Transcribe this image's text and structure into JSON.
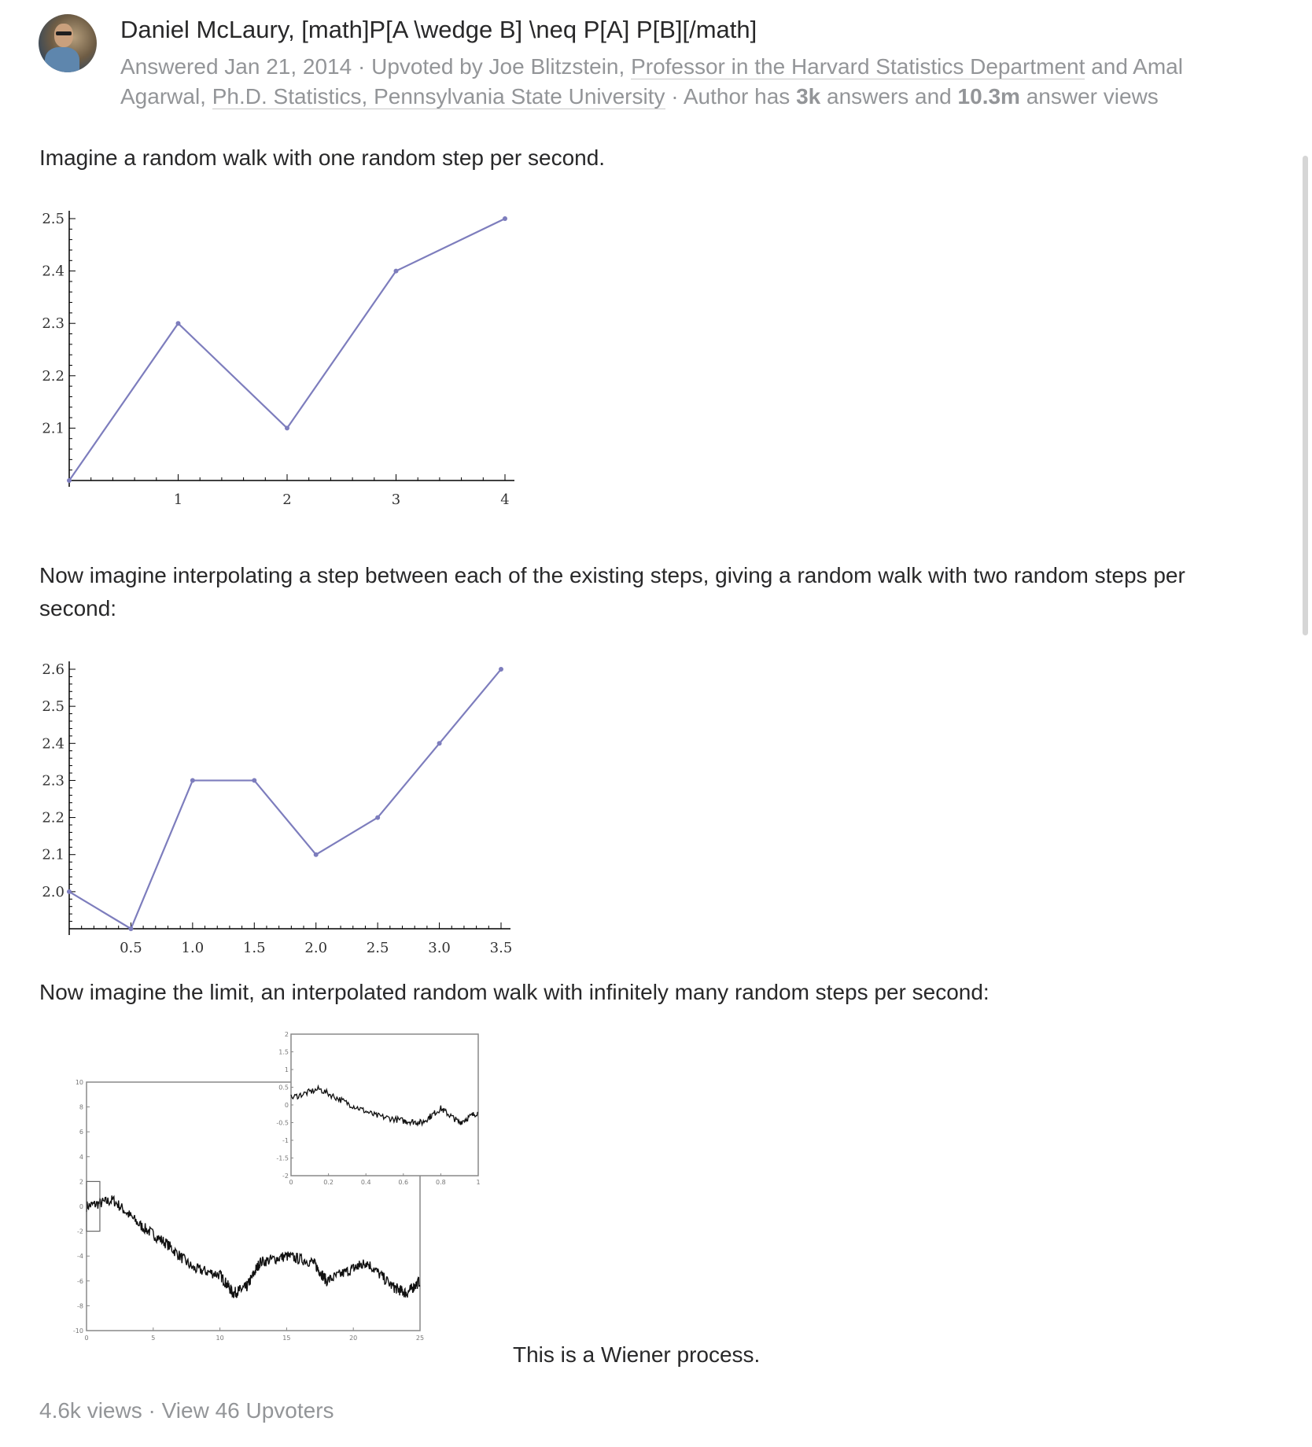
{
  "author": {
    "name": "Daniel McLaury, [math]P[A \\wedge B] \\neq P[A] P[B][/math]",
    "answered": "Answered Jan 21, 2014",
    "upvoted_prefix": "Upvoted by",
    "upvoter1_name": "Joe Blitzstein,",
    "upvoter1_credential": "Professor in the Harvard Statistics Department",
    "and_text": "and",
    "upvoter2_name": "Amal Agarwal,",
    "upvoter2_credential": "Ph.D. Statistics, Pennsylvania State University",
    "author_has": "Author has",
    "answers_count": "3k",
    "answers_word": "answers and",
    "views_count": "10.3m",
    "views_word": "answer views"
  },
  "body": {
    "p1": "Imagine a random walk with one random step per second.",
    "p2": "Now imagine interpolating a step between each of the existing steps, giving a random walk with two random steps per second:",
    "p3": "Now imagine the limit, an interpolated random walk with infinitely many random steps per second:",
    "caption": "This is a Wiener process."
  },
  "footer": {
    "views": "4.6k views",
    "separator": "·",
    "upvoters": "View 46 Upvoters"
  },
  "colors": {
    "line": "#7d7dbd",
    "meta": "#939598",
    "text": "#282829"
  },
  "chart_data": [
    {
      "type": "line",
      "x": [
        0,
        1,
        2,
        3,
        4
      ],
      "y": [
        2.0,
        2.3,
        2.1,
        2.4,
        2.5
      ],
      "x_ticks": [
        "1",
        "2",
        "3",
        "4"
      ],
      "y_ticks": [
        "2.1",
        "2.2",
        "2.3",
        "2.4",
        "2.5"
      ],
      "xlim": [
        0,
        4
      ],
      "ylim": [
        2.0,
        2.5
      ]
    },
    {
      "type": "line",
      "x": [
        0,
        0.5,
        1.0,
        1.5,
        2.0,
        2.5,
        3.0,
        3.5
      ],
      "y": [
        2.0,
        1.9,
        2.3,
        2.3,
        2.1,
        2.2,
        2.4,
        2.6
      ],
      "x_ticks": [
        "0.5",
        "1.0",
        "1.5",
        "2.0",
        "2.5",
        "3.0",
        "3.5"
      ],
      "y_ticks": [
        "2.0",
        "2.1",
        "2.2",
        "2.3",
        "2.4",
        "2.5",
        "2.6"
      ],
      "xlim": [
        0,
        3.5
      ],
      "ylim": [
        1.9,
        2.6
      ]
    },
    {
      "type": "line",
      "main_x_ticks": [
        "0",
        "5",
        "10",
        "15",
        "20",
        "25"
      ],
      "main_y_ticks": [
        "10",
        "8",
        "6",
        "4",
        "2",
        "0",
        "-2",
        "-4",
        "-6",
        "-8",
        "-10"
      ],
      "inset_x_ticks": [
        "0",
        "0.2",
        "0.4",
        "0.6",
        "0.8",
        "1"
      ],
      "inset_y_ticks": [
        "2",
        "1.5",
        "1",
        "0.5",
        "0",
        "-0.5",
        "-1",
        "-1.5",
        "-2"
      ],
      "xlim": [
        0,
        25
      ],
      "ylim": [
        -10,
        10
      ],
      "inset_xlim": [
        0,
        1
      ],
      "inset_ylim": [
        -2,
        2
      ]
    }
  ]
}
